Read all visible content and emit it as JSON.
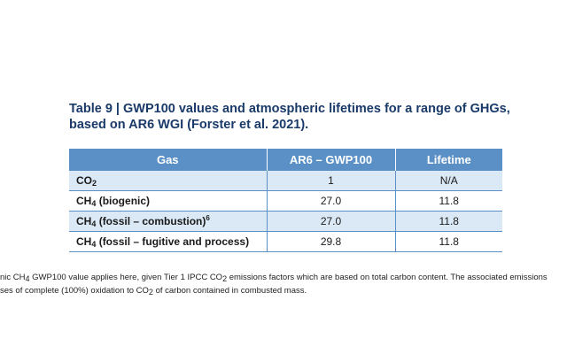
{
  "caption": {
    "line1": "Table 9 | GWP100 values and atmospheric lifetimes for a range of GHGs,",
    "line2": "based on AR6 WGI (Forster et al. 2021)."
  },
  "table": {
    "headers": [
      "Gas",
      "AR6 – GWP100",
      "Lifetime"
    ],
    "rows": [
      {
        "gas": "CO",
        "gas_sub": "2",
        "gas_rest": "",
        "gas_sup": "",
        "gwp": "1",
        "lifetime": "N/A"
      },
      {
        "gas": "CH",
        "gas_sub": "4",
        "gas_rest": " (biogenic)",
        "gas_sup": "",
        "gwp": "27.0",
        "lifetime": "11.8"
      },
      {
        "gas": "CH",
        "gas_sub": "4",
        "gas_rest": " (fossil – combustion)",
        "gas_sup": "6",
        "gwp": "27.0",
        "lifetime": "11.8"
      },
      {
        "gas": "CH",
        "gas_sub": "4",
        "gas_rest": " (fossil – fugitive and process)",
        "gas_sup": "",
        "gwp": "29.8",
        "lifetime": "11.8"
      }
    ]
  },
  "footnote": {
    "l1_a": "nic CH",
    "l1_sub1": "4",
    "l1_b": " GWP100 value applies here, given Tier 1 IPCC CO",
    "l1_sub2": "2",
    "l1_c": " emissions factors which are based on total carbon content. The associated emissions",
    "l2_a": "ses of complete (100%) oxidation to CO",
    "l2_sub": "2",
    "l2_b": " of carbon contained in combusted mass."
  }
}
